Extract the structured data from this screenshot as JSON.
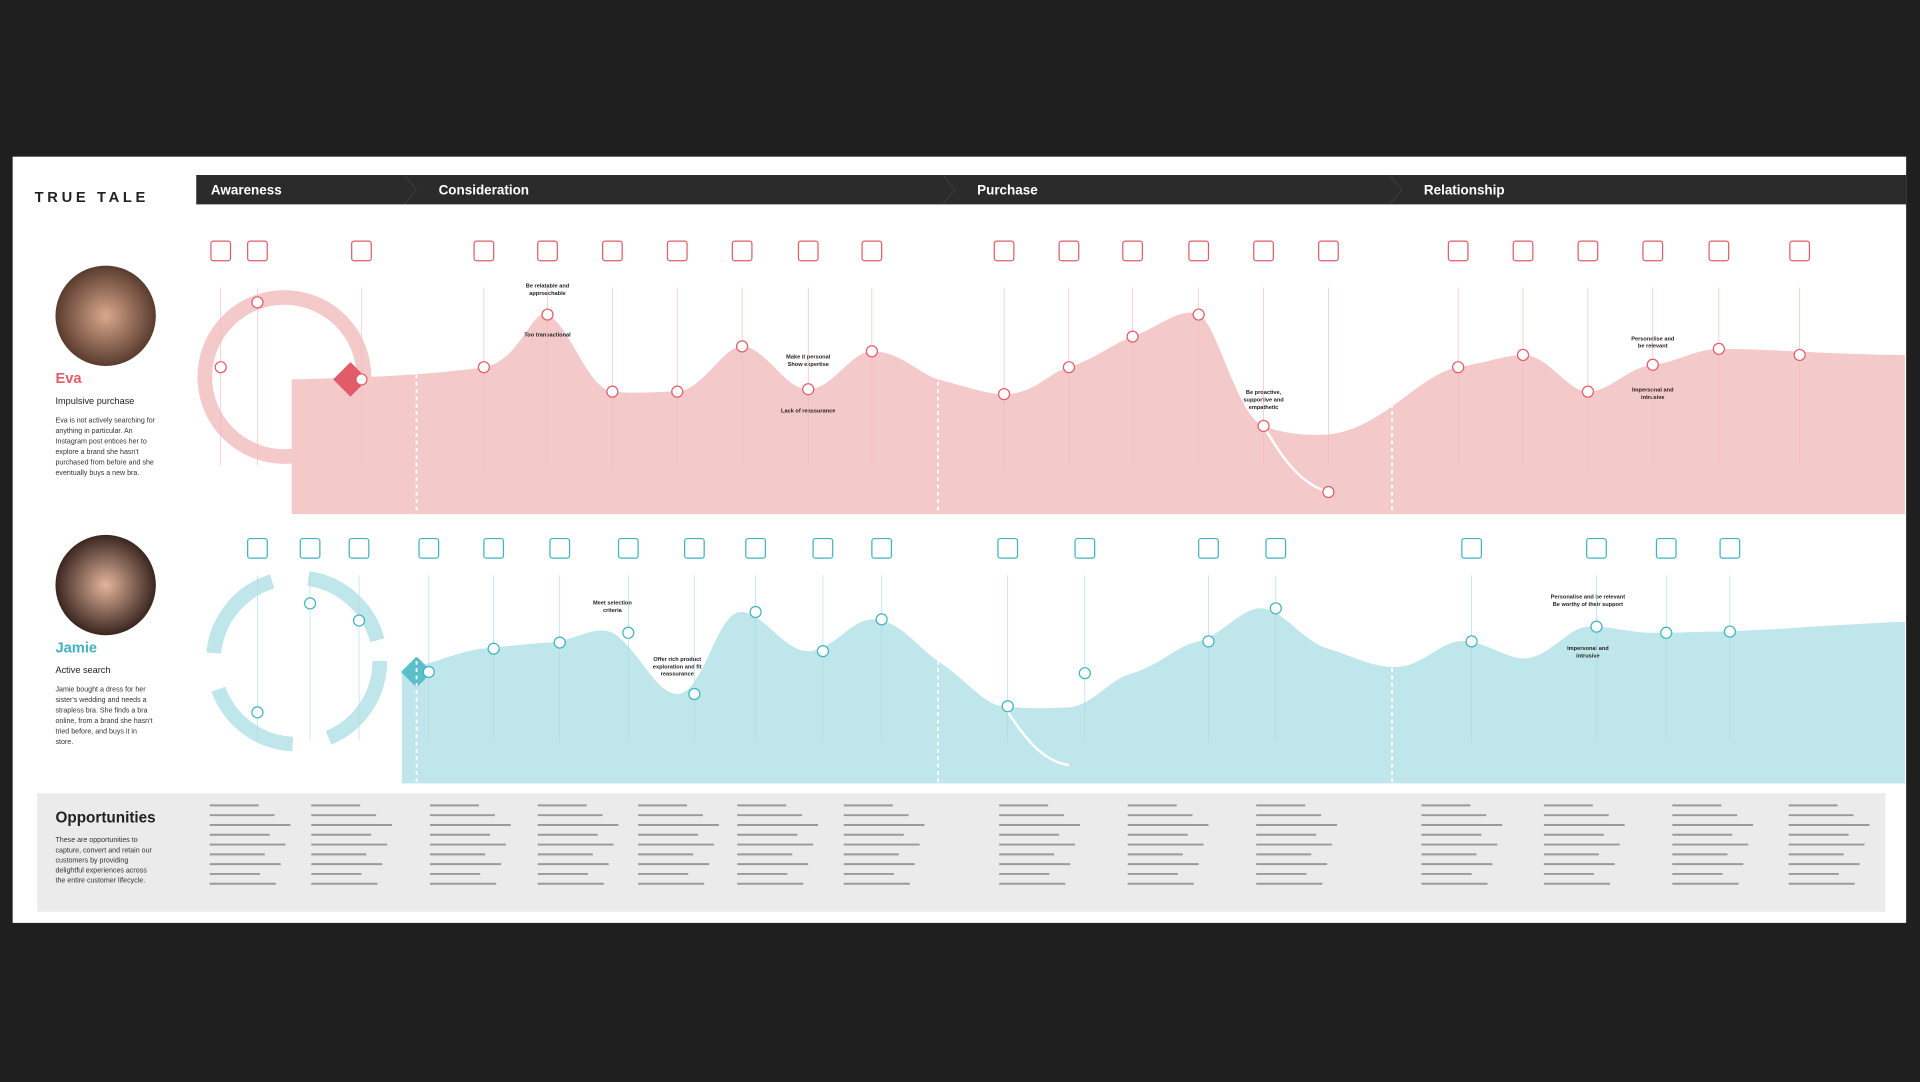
{
  "header": {
    "logo": "TRUE TALE"
  },
  "phases": [
    "Awareness",
    "Consideration",
    "Purchase",
    "Relationship"
  ],
  "personas": [
    {
      "name": "Eva",
      "subtitle": "Impulsive purchase",
      "description": [
        "Eva is not actively searching for",
        "anything in particular. An",
        "Instagram post entices her to",
        "explore a brand she hasn't",
        "purchased from before and she",
        "eventually buys a new bra."
      ],
      "annotations": [
        [
          "Be relatable and",
          "approachable"
        ],
        [
          "Too transactional"
        ],
        [
          "Make it personal",
          "Show expertise"
        ],
        [
          "Lack of reassurance"
        ],
        [
          "Be proactive,",
          "supportive and",
          "empathetic"
        ],
        [
          "Personalise and",
          "be relevant"
        ],
        [
          "Impersonal and",
          "intrusive"
        ]
      ]
    },
    {
      "name": "Jamie",
      "subtitle": "Active search",
      "description": [
        "Jamie bought a dress for her",
        "sister's wedding and needs a",
        "strapless bra. She finds a bra",
        "online, from a brand she hasn't",
        "tried before, and buys it in",
        "store."
      ],
      "annotations": [
        [
          "Meet selection",
          "criteria"
        ],
        [
          "Offer rich product",
          "exploration and fit",
          "reassurance"
        ],
        [
          "Personalise and be relevant",
          "Be worthy of their support"
        ],
        [
          "Impersonal and",
          "intrusive"
        ]
      ]
    }
  ],
  "opportunities": {
    "title": "Opportunities",
    "description": [
      "These are opportunities to",
      "capture, convert and retain our",
      "customers by providing",
      "delightful experiences across",
      "the entire customer lifecycle."
    ]
  }
}
